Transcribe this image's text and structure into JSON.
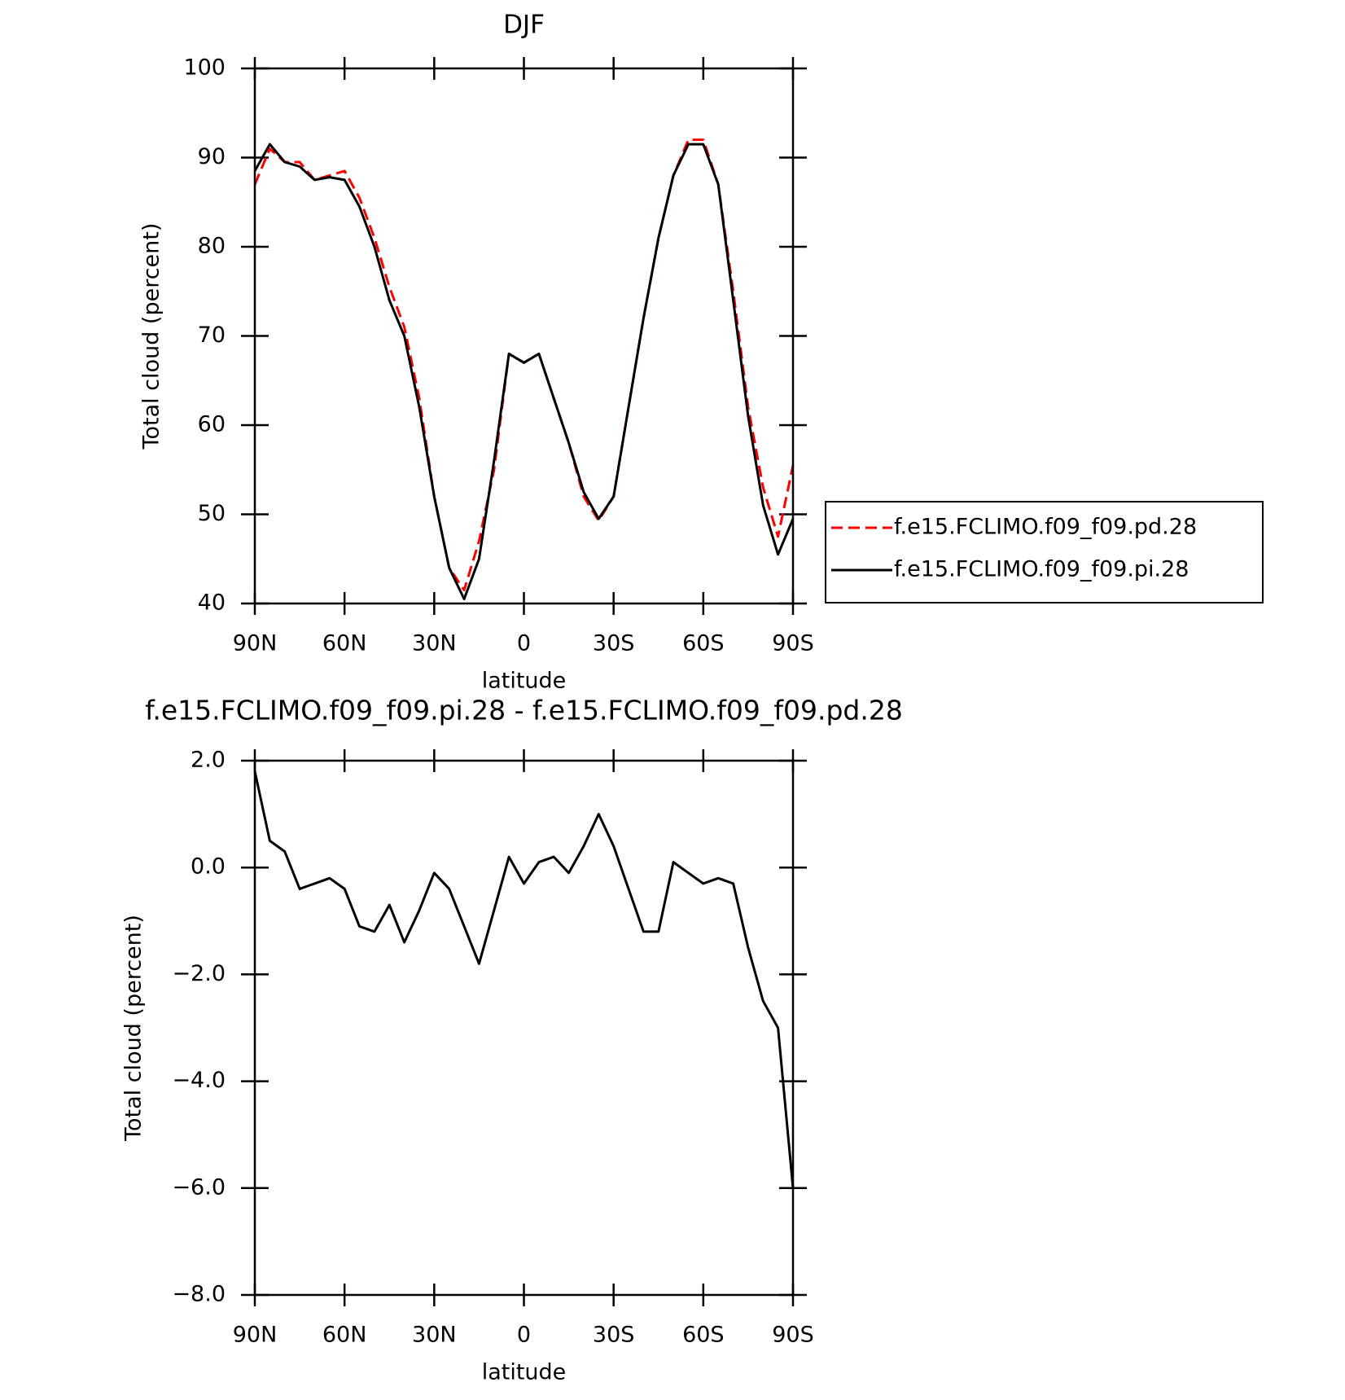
{
  "chart_data": [
    {
      "type": "line",
      "title": "DJF",
      "x_label": "latitude",
      "y_label": "Total cloud (percent)",
      "x": [
        90,
        85,
        80,
        75,
        70,
        65,
        60,
        55,
        50,
        45,
        40,
        35,
        30,
        25,
        20,
        15,
        10,
        5,
        0,
        -5,
        -10,
        -15,
        -20,
        -25,
        -30,
        -35,
        -40,
        -45,
        -50,
        -55,
        -60,
        -65,
        -70,
        -75,
        -80,
        -85,
        -90
      ],
      "series": [
        {
          "name": "f.e15.FCLIMO.f09_f09.pd.28",
          "color": "#ff0000",
          "line_style": "dashed",
          "values": [
            87,
            91,
            89.5,
            89.5,
            87.5,
            88,
            88.5,
            85.5,
            81,
            75.5,
            71,
            63,
            52,
            44,
            41.5,
            47,
            55,
            68,
            67,
            68,
            63,
            58,
            52,
            49.3,
            52,
            62,
            72,
            81,
            88,
            92,
            92,
            87,
            75,
            62,
            53,
            47.5,
            55.5
          ]
        },
        {
          "name": "f.e15.FCLIMO.f09_f09.pi.28",
          "color": "#000000",
          "line_style": "solid",
          "values": [
            88.5,
            91.5,
            89.5,
            89,
            87.5,
            87.8,
            87.5,
            84.5,
            80,
            74,
            70,
            62,
            52,
            44,
            40.5,
            45,
            56,
            68,
            67,
            68,
            63,
            58,
            52.5,
            49.5,
            52,
            62,
            72,
            81,
            88,
            91.5,
            91.5,
            87,
            74,
            61,
            51,
            45.5,
            49.5
          ]
        }
      ],
      "xlim": [
        90,
        -90
      ],
      "xticks": [
        {
          "value": 90,
          "label": "90N"
        },
        {
          "value": 60,
          "label": "60N"
        },
        {
          "value": 30,
          "label": "30N"
        },
        0,
        {
          "value": -30,
          "label": "30S"
        },
        {
          "value": -60,
          "label": "60S"
        },
        {
          "value": -90,
          "label": "90S"
        }
      ],
      "ylim": [
        40,
        100
      ],
      "yticks": [
        40,
        50,
        60,
        70,
        80,
        90,
        100
      ],
      "legend": "right"
    },
    {
      "type": "line",
      "title": "f.e15.FCLIMO.f09_f09.pi.28 - f.e15.FCLIMO.f09_f09.pd.28",
      "x_label": "latitude",
      "y_label": "Total cloud (percent)",
      "x": [
        90,
        85,
        80,
        75,
        70,
        65,
        60,
        55,
        50,
        45,
        40,
        35,
        30,
        25,
        20,
        15,
        10,
        5,
        0,
        -5,
        -10,
        -15,
        -20,
        -25,
        -30,
        -35,
        -40,
        -45,
        -50,
        -55,
        -60,
        -65,
        -70,
        -75,
        -80,
        -85,
        -90
      ],
      "values": [
        1.8,
        0.5,
        0.3,
        -0.4,
        -0.3,
        -0.2,
        -0.4,
        -1.1,
        -1.2,
        -0.7,
        -1.4,
        -0.8,
        -0.1,
        -0.4,
        -1.1,
        -1.8,
        -0.8,
        0.2,
        -0.3,
        0.1,
        0.2,
        -0.1,
        0.4,
        1.0,
        0.4,
        -0.4,
        -1.2,
        -1.2,
        0.1,
        -0.1,
        -0.3,
        -0.2,
        -0.3,
        -1.5,
        -2.5,
        -3.0,
        -6.0
      ],
      "color": "#000000",
      "xlim": [
        90,
        -90
      ],
      "xticks": [
        {
          "value": 90,
          "label": "90N"
        },
        {
          "value": 60,
          "label": "60N"
        },
        {
          "value": 30,
          "label": "30N"
        },
        0,
        {
          "value": -30,
          "label": "30S"
        },
        {
          "value": -60,
          "label": "60S"
        },
        {
          "value": -90,
          "label": "90S"
        }
      ],
      "ylim": [
        -8,
        2
      ],
      "yticks": [
        {
          "value": -8,
          "label": "−8.0"
        },
        {
          "value": -6,
          "label": "−6.0"
        },
        {
          "value": -4,
          "label": "−4.0"
        },
        {
          "value": -2,
          "label": "−2.0"
        },
        {
          "value": 0,
          "label": "0.0"
        },
        {
          "value": 2,
          "label": "2.0"
        }
      ]
    }
  ]
}
